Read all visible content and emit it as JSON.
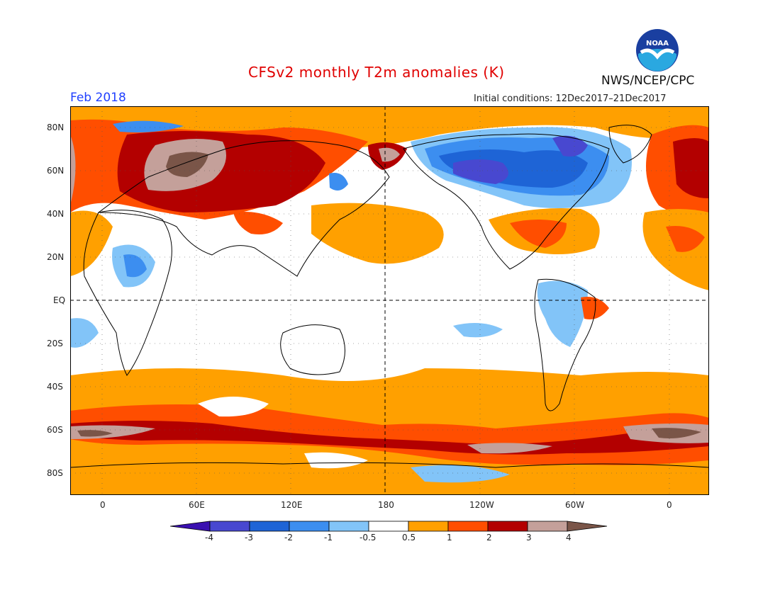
{
  "header": {
    "title": "CFSv2 monthly T2m anomalies (K)",
    "month": "Feb 2018",
    "initial_conditions": "Initial conditions: 12Dec2017–21Dec2017",
    "agency": "NWS/NCEP/CPC",
    "logo_text": "NOAA"
  },
  "axes": {
    "lat_labels": [
      "80N",
      "60N",
      "40N",
      "20N",
      "EQ",
      "20S",
      "40S",
      "60S",
      "80S"
    ],
    "lon_labels": [
      "0",
      "60E",
      "120E",
      "180",
      "120W",
      "60W",
      "0"
    ]
  },
  "legend": {
    "ticks": [
      "-4",
      "-3",
      "-2",
      "-1",
      "-0.5",
      "0.5",
      "1",
      "2",
      "3",
      "4"
    ],
    "colors": [
      "#3a10b0",
      "#4848d0",
      "#1e64d6",
      "#3c8ef0",
      "#82c4f8",
      "#ffffff",
      "#ffa000",
      "#ff4e00",
      "#b30000",
      "#c4a09a",
      "#7a5548"
    ]
  },
  "map": {
    "colors": {
      "ocean_bg": "#ffffff",
      "warm1": "#ffa000",
      "warm2": "#ff4e00",
      "warm3": "#b30000",
      "warm4": "#c4a09a",
      "warm5": "#7a5548",
      "cool1": "#82c4f8",
      "cool2": "#3c8ef0",
      "cool3": "#1e64d6",
      "cool4": "#4848d0"
    }
  }
}
